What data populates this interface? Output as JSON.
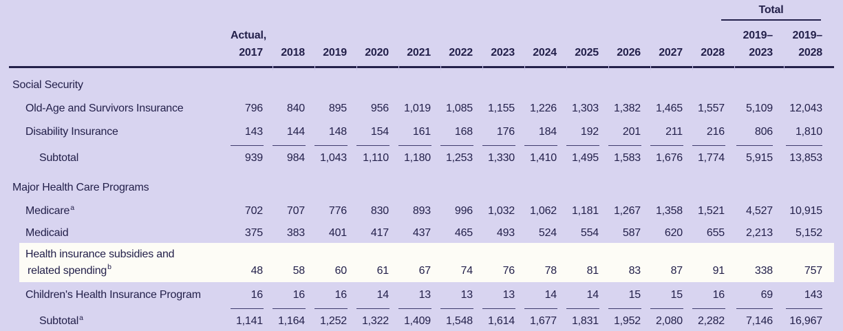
{
  "page": {
    "background_color": "#d8d4f0",
    "highlight_color": "#fdfcf6",
    "text_color": "#23204a",
    "units_note": "values are outlay amounts as printed"
  },
  "table": {
    "header": {
      "actual_label": "Actual,",
      "years": [
        "2017",
        "2018",
        "2019",
        "2020",
        "2021",
        "2022",
        "2023",
        "2024",
        "2025",
        "2026",
        "2027",
        "2028"
      ],
      "total_label": "Total",
      "total_columns": [
        {
          "line1": "2019–",
          "line2": "2023"
        },
        {
          "line1": "2019–",
          "line2": "2028"
        }
      ]
    },
    "sections": [
      {
        "title": "Social Security",
        "rows": [
          {
            "label": "Old-Age and Survivors Insurance",
            "footnote": "",
            "indent": 1,
            "values": [
              "796",
              "840",
              "895",
              "956",
              "1,019",
              "1,085",
              "1,155",
              "1,226",
              "1,303",
              "1,382",
              "1,465",
              "1,557"
            ],
            "totals": [
              "5,109",
              "12,043"
            ]
          },
          {
            "label": "Disability Insurance",
            "footnote": "",
            "indent": 1,
            "rule_below": true,
            "values": [
              "143",
              "144",
              "148",
              "154",
              "161",
              "168",
              "176",
              "184",
              "192",
              "201",
              "211",
              "216"
            ],
            "totals": [
              "806",
              "1,810"
            ]
          },
          {
            "label": "Subtotal",
            "footnote": "",
            "indent": 2,
            "subtotal": true,
            "values": [
              "939",
              "984",
              "1,043",
              "1,110",
              "1,180",
              "1,253",
              "1,330",
              "1,410",
              "1,495",
              "1,583",
              "1,676",
              "1,774"
            ],
            "totals": [
              "5,915",
              "13,853"
            ]
          }
        ]
      },
      {
        "title": "Major Health Care Programs",
        "rows": [
          {
            "label": "Medicare",
            "footnote": "a",
            "indent": 1,
            "values": [
              "702",
              "707",
              "776",
              "830",
              "893",
              "996",
              "1,032",
              "1,062",
              "1,181",
              "1,267",
              "1,358",
              "1,521"
            ],
            "totals": [
              "4,527",
              "10,915"
            ]
          },
          {
            "label": "Medicaid",
            "footnote": "",
            "indent": 1,
            "compact": true,
            "values": [
              "375",
              "383",
              "401",
              "417",
              "437",
              "465",
              "493",
              "524",
              "554",
              "587",
              "620",
              "655"
            ],
            "totals": [
              "2,213",
              "5,152"
            ]
          },
          {
            "label": "Health insurance subsidies and related spending",
            "footnote": "b",
            "indent": 1,
            "highlight": true,
            "label_lines": [
              "Health insurance subsidies and",
              "related spending"
            ],
            "values": [
              "48",
              "58",
              "60",
              "61",
              "67",
              "74",
              "76",
              "78",
              "81",
              "83",
              "87",
              "91"
            ],
            "totals": [
              "338",
              "757"
            ]
          },
          {
            "label": "Children's Health Insurance Program",
            "footnote": "",
            "indent": 1,
            "rule_below": true,
            "values": [
              "16",
              "16",
              "16",
              "14",
              "13",
              "13",
              "13",
              "14",
              "14",
              "15",
              "15",
              "16"
            ],
            "totals": [
              "69",
              "143"
            ]
          },
          {
            "label": "Subtotal",
            "footnote": "a",
            "indent": 2,
            "subtotal": true,
            "values": [
              "1,141",
              "1,164",
              "1,252",
              "1,322",
              "1,409",
              "1,548",
              "1,614",
              "1,677",
              "1,831",
              "1,952",
              "2,080",
              "2,282"
            ],
            "totals": [
              "7,146",
              "16,967"
            ]
          }
        ]
      }
    ]
  }
}
